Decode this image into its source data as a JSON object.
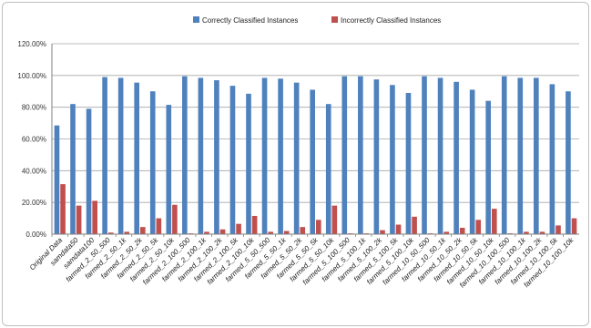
{
  "chart_data": {
    "type": "bar",
    "title": "",
    "xlabel": "",
    "ylabel": "",
    "ylim": [
      0,
      120
    ],
    "y_ticks": [
      "0.00%",
      "20.00%",
      "40.00%",
      "60.00%",
      "80.00%",
      "100.00%",
      "120.00%"
    ],
    "y_tick_values": [
      0,
      20,
      40,
      60,
      80,
      100,
      120
    ],
    "grid": true,
    "legend_position": "top",
    "categories": [
      "Original Data",
      "samdata50",
      "samdata100",
      "farmed_2_50_500",
      "farmed_2_50_1k",
      "farmed_2_50_2k",
      "farmed_2_50_5k",
      "farmed_2_50_10k",
      "farmed_2_100_500",
      "farmed_2_100_1k",
      "farmed_2_100_2k",
      "farmed_2_100_5k",
      "farmed_2_100_10k",
      "farmed_5_50_500",
      "farmed_5_50_1k",
      "farmed_5_50_2k",
      "farmed_5_50_5k",
      "farmed_5_50_10k",
      "farmed_5_100_500",
      "farmed_5_100_1k",
      "farmed_5_100_2k",
      "farmed_5_100_5k",
      "farmed_5_100_10k",
      "farmed_10_50_500",
      "farmed_10_50_1k",
      "farmed_10_50_2k",
      "farmed_10_50_5k",
      "farmed_10_50_10k",
      "farmed_10_100_500",
      "farmed_10_100_1k",
      "farmed_10_100_2k",
      "farmed_10_100_5k",
      "farmed_10_100_10k"
    ],
    "series": [
      {
        "name": "Correctly Classified Instances",
        "color": "#4f81bd",
        "values": [
          68.5,
          82,
          79,
          99,
          98.5,
          95.5,
          90,
          81.5,
          99.5,
          98.5,
          97,
          93.5,
          88.5,
          98.5,
          98,
          95.5,
          91,
          82,
          99.5,
          99.5,
          97.5,
          94,
          89,
          99.5,
          98.5,
          96,
          91,
          84,
          99.5,
          98.5,
          98.5,
          94.5,
          90
        ]
      },
      {
        "name": "Incorrectly Classified Instances",
        "color": "#c0504d",
        "values": [
          31.5,
          18,
          21,
          1,
          1.5,
          4.5,
          10,
          18.5,
          0.5,
          1.5,
          3,
          6.5,
          11.5,
          1.5,
          2,
          4.5,
          9,
          18,
          0.5,
          0.5,
          2.5,
          6,
          11,
          0.5,
          1.5,
          4,
          9,
          16,
          0.5,
          1.5,
          1.5,
          5.5,
          10
        ]
      }
    ]
  }
}
